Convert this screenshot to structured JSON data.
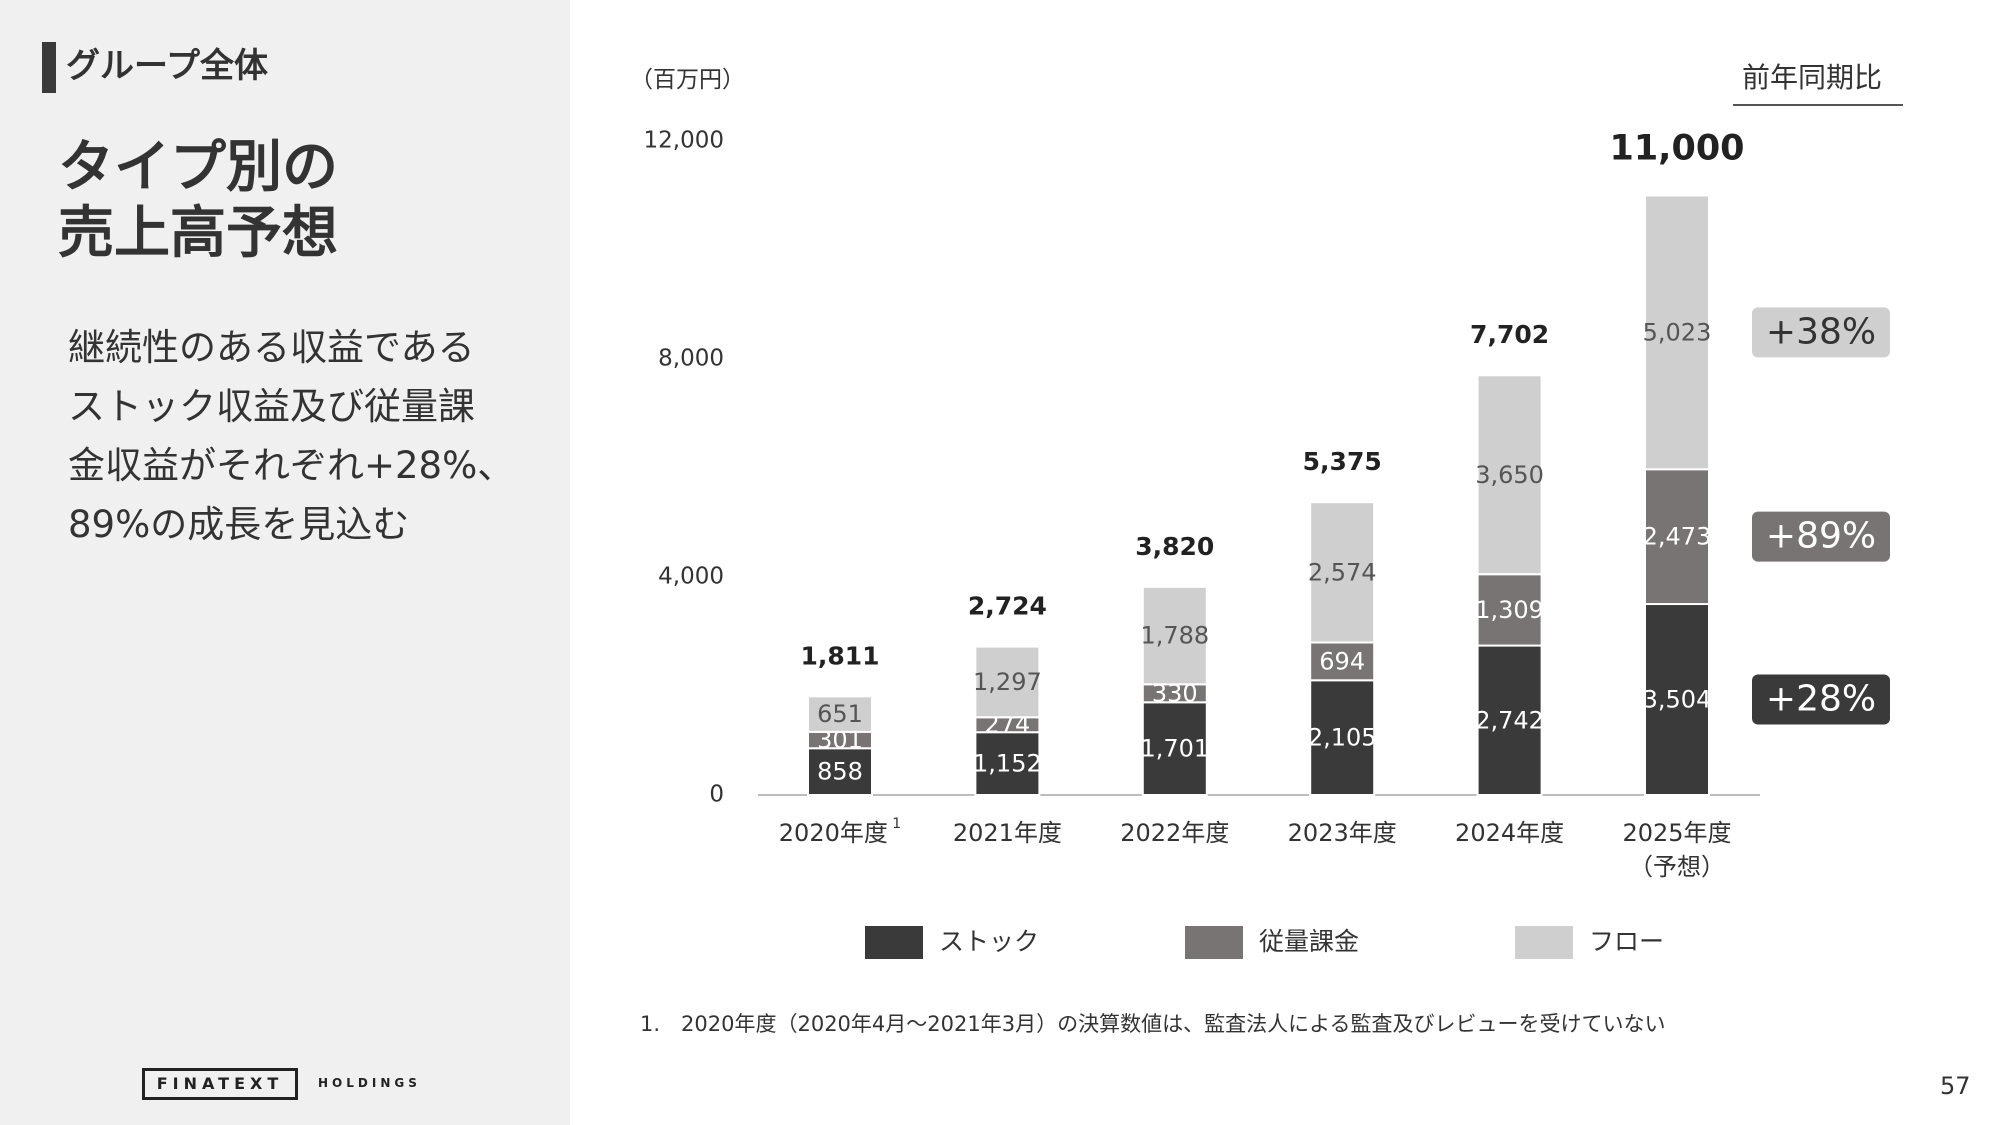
{
  "sidebar": {
    "section_label": "グループ全体",
    "title_lines": [
      "タイプ別の",
      "売上高予想"
    ],
    "summary_lines": [
      "継続性のある収益である",
      "ストック収益及び従量課",
      "金収益がそれぞれ+28%、",
      "89%の成長を見込む"
    ],
    "logo_text": "FINATEXT",
    "logo_sub": "HOLDINGS"
  },
  "unit_label": "（百万円）",
  "yoy_header": "前年同期比",
  "footnote": "1.　2020年度（2020年4月～2021年3月）の決算数値は、監査法人による監査及びレビューを受けていない",
  "page_number": "57",
  "colors": {
    "stock": "#3b3a3a",
    "usage": "#787474",
    "flow": "#d0cfcf",
    "axis": "#bdbdbd"
  },
  "chart_data": {
    "type": "bar",
    "stacked": true,
    "ylim": [
      0,
      12000
    ],
    "y_ticks": [
      0,
      4000,
      8000,
      12000
    ],
    "y_tick_labels": [
      "0",
      "4,000",
      "8,000",
      "12,000"
    ],
    "categories": [
      "2020年度",
      "2021年度",
      "2022年度",
      "2023年度",
      "2024年度",
      "2025年度"
    ],
    "category_sublabels": [
      "",
      "",
      "",
      "",
      "",
      "（予想）"
    ],
    "category_superscripts": [
      "1",
      "",
      "",
      "",
      "",
      ""
    ],
    "series": [
      {
        "key": "stock",
        "name": "ストック",
        "values": [
          858,
          1152,
          1701,
          2105,
          2742,
          3504
        ],
        "labels": [
          "858",
          "1,152",
          "1,701",
          "2,105",
          "2,742",
          "3,504"
        ]
      },
      {
        "key": "usage",
        "name": "従量課金",
        "values": [
          301,
          274,
          330,
          694,
          1309,
          2473
        ],
        "labels": [
          "301",
          "274",
          "330",
          "694",
          "1,309",
          "2,473"
        ]
      },
      {
        "key": "flow",
        "name": "フロー",
        "values": [
          651,
          1297,
          1788,
          2574,
          3650,
          5023
        ],
        "labels": [
          "651",
          "1,297",
          "1,788",
          "2,574",
          "3,650",
          "5,023"
        ]
      }
    ],
    "totals": [
      1811,
      2724,
      3820,
      5375,
      7702,
      11000
    ],
    "total_labels": [
      "1,811",
      "2,724",
      "3,820",
      "5,375",
      "7,702",
      "11,000"
    ],
    "yoy_badges": [
      {
        "series": "flow",
        "text": "+38%"
      },
      {
        "series": "usage",
        "text": "+89%"
      },
      {
        "series": "stock",
        "text": "+28%"
      }
    ],
    "legend_position": "bottom"
  }
}
